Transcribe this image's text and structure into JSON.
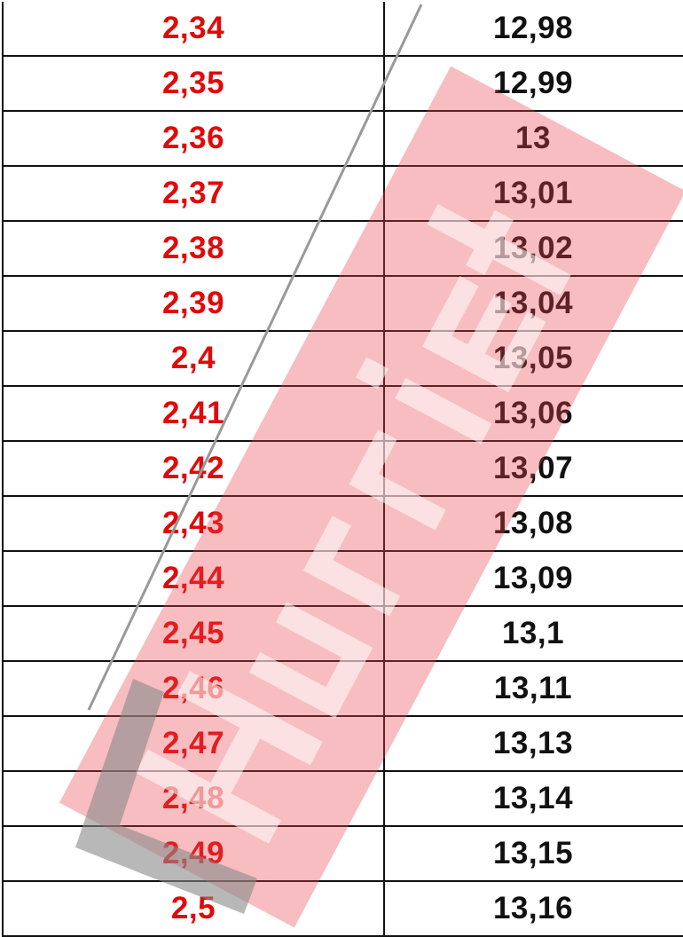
{
  "table": {
    "rows": [
      [
        "2,34",
        "12,98"
      ],
      [
        "2,35",
        "12,99"
      ],
      [
        "2,36",
        "13"
      ],
      [
        "2,37",
        "13,01"
      ],
      [
        "2,38",
        "13,02"
      ],
      [
        "2,39",
        "13,04"
      ],
      [
        "2,4",
        "13,05"
      ],
      [
        "2,41",
        "13,06"
      ],
      [
        "2,42",
        "13,07"
      ],
      [
        "2,43",
        "13,08"
      ],
      [
        "2,44",
        "13,09"
      ],
      [
        "2,45",
        "13,1"
      ],
      [
        "2,46",
        "13,11"
      ],
      [
        "2,47",
        "13,13"
      ],
      [
        "2,48",
        "13,14"
      ],
      [
        "2,49",
        "13,15"
      ],
      [
        "2,5",
        "13,16"
      ]
    ]
  },
  "watermark": {
    "text": "Hürriyet",
    "color": "#e8434a"
  },
  "colors": {
    "left_text": "#e00a0a",
    "right_text": "#111111"
  }
}
